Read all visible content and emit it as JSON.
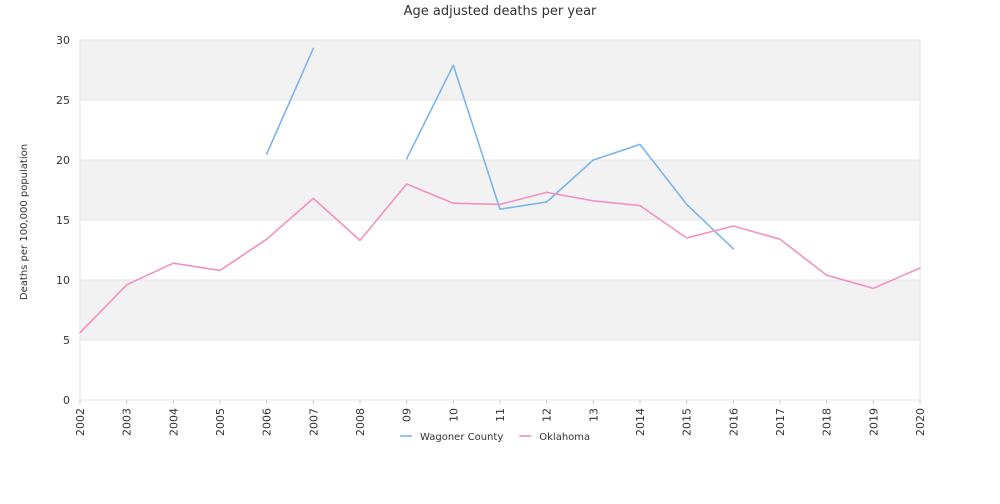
{
  "chart_data": {
    "type": "line",
    "title": "Age adjusted deaths per year",
    "ylabel": "Deaths per 100,000 population",
    "xlabel": "",
    "x": [
      "2002",
      "2003",
      "2004",
      "2005",
      "2006",
      "2007",
      "2008",
      "09",
      "10",
      "11",
      "12",
      "13",
      "2014",
      "2015",
      "2016",
      "2017",
      "2018",
      "2019",
      "2020"
    ],
    "ylim": [
      0,
      30
    ],
    "yticks": [
      0,
      5,
      10,
      15,
      20,
      25,
      30
    ],
    "grid": true,
    "legend_position": "bottom",
    "series": [
      {
        "name": "Wagoner County",
        "color": "#7cb5ec",
        "values": [
          null,
          null,
          null,
          null,
          20.5,
          29.3,
          null,
          20.1,
          27.9,
          15.9,
          16.5,
          20.0,
          21.3,
          16.3,
          12.6,
          null,
          null,
          null,
          null
        ]
      },
      {
        "name": "Oklahoma",
        "color": "#f490c2",
        "values": [
          5.6,
          9.6,
          11.4,
          10.8,
          13.4,
          16.8,
          13.3,
          18.0,
          16.4,
          16.3,
          17.3,
          16.6,
          16.2,
          13.5,
          14.5,
          13.4,
          10.4,
          9.3,
          11.0
        ]
      }
    ]
  }
}
